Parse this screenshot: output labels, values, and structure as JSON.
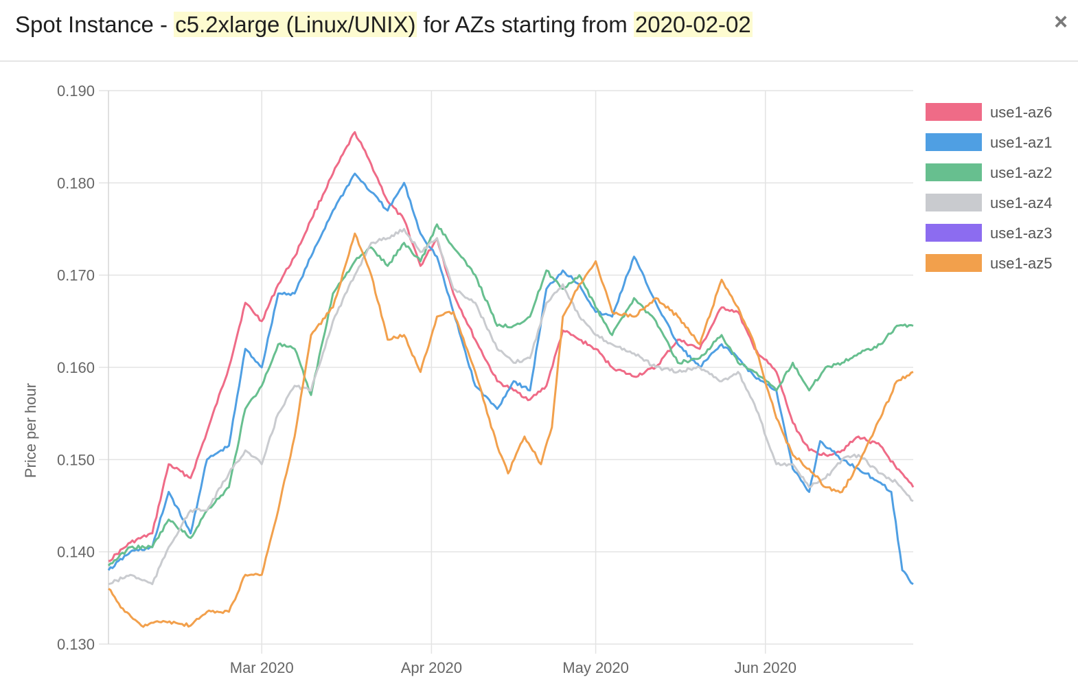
{
  "header": {
    "title_prefix": "Spot Instance - ",
    "instance_type": "c5.2xlarge (Linux/UNIX)",
    "title_middle": " for AZs starting from ",
    "start_date": "2020-02-02",
    "close_icon": "close-icon",
    "close_glyph": "×"
  },
  "chart_data": {
    "type": "line",
    "title": "Spot Instance - c5.2xlarge (Linux/UNIX) for AZs starting from 2020-02-02",
    "ylabel": "Price per hour",
    "xlabel": "",
    "x_axis": {
      "type": "date",
      "start": "2020-02-02",
      "end": "2020-06-28",
      "ticks": [
        "2020-03-01",
        "2020-04-01",
        "2020-05-01",
        "2020-06-01"
      ],
      "tick_labels": [
        "Mar 2020",
        "Apr 2020",
        "May 2020",
        "Jun 2020"
      ]
    },
    "ylim": [
      0.13,
      0.19
    ],
    "yticks": [
      0.13,
      0.14,
      0.15,
      0.16,
      0.17,
      0.18,
      0.19
    ],
    "ytick_labels": [
      "0.130",
      "0.140",
      "0.150",
      "0.160",
      "0.170",
      "0.180",
      "0.190"
    ],
    "grid": true,
    "legend_position": "right",
    "series": [
      {
        "name": "use1-az6",
        "color": "#ef6b87",
        "points": [
          [
            "2020-02-02",
            0.139
          ],
          [
            "2020-02-06",
            0.141
          ],
          [
            "2020-02-10",
            0.142
          ],
          [
            "2020-02-13",
            0.1495
          ],
          [
            "2020-02-17",
            0.148
          ],
          [
            "2020-02-20",
            0.153
          ],
          [
            "2020-02-24",
            0.16
          ],
          [
            "2020-02-27",
            0.167
          ],
          [
            "2020-03-01",
            0.165
          ],
          [
            "2020-03-04",
            0.169
          ],
          [
            "2020-03-07",
            0.172
          ],
          [
            "2020-03-10",
            0.176
          ],
          [
            "2020-03-14",
            0.181
          ],
          [
            "2020-03-18",
            0.1855
          ],
          [
            "2020-03-21",
            0.182
          ],
          [
            "2020-03-24",
            0.178
          ],
          [
            "2020-03-27",
            0.176
          ],
          [
            "2020-03-30",
            0.171
          ],
          [
            "2020-04-02",
            0.174
          ],
          [
            "2020-04-05",
            0.168
          ],
          [
            "2020-04-09",
            0.163
          ],
          [
            "2020-04-13",
            0.1585
          ],
          [
            "2020-04-16",
            0.1575
          ],
          [
            "2020-04-19",
            0.1565
          ],
          [
            "2020-04-22",
            0.158
          ],
          [
            "2020-04-25",
            0.164
          ],
          [
            "2020-04-28",
            0.163
          ],
          [
            "2020-05-01",
            0.162
          ],
          [
            "2020-05-04",
            0.16
          ],
          [
            "2020-05-08",
            0.159
          ],
          [
            "2020-05-12",
            0.16
          ],
          [
            "2020-05-16",
            0.163
          ],
          [
            "2020-05-20",
            0.162
          ],
          [
            "2020-05-24",
            0.1665
          ],
          [
            "2020-05-27",
            0.166
          ],
          [
            "2020-05-30",
            0.162
          ],
          [
            "2020-06-03",
            0.1595
          ],
          [
            "2020-06-06",
            0.154
          ],
          [
            "2020-06-09",
            0.151
          ],
          [
            "2020-06-12",
            0.1505
          ],
          [
            "2020-06-15",
            0.151
          ],
          [
            "2020-06-18",
            0.1525
          ],
          [
            "2020-06-22",
            0.1515
          ],
          [
            "2020-06-25",
            0.149
          ],
          [
            "2020-06-28",
            0.147
          ]
        ]
      },
      {
        "name": "use1-az1",
        "color": "#4f9fe3",
        "points": [
          [
            "2020-02-02",
            0.138
          ],
          [
            "2020-02-06",
            0.14
          ],
          [
            "2020-02-10",
            0.1405
          ],
          [
            "2020-02-13",
            0.1465
          ],
          [
            "2020-02-17",
            0.142
          ],
          [
            "2020-02-20",
            0.15
          ],
          [
            "2020-02-24",
            0.1515
          ],
          [
            "2020-02-27",
            0.162
          ],
          [
            "2020-03-01",
            0.16
          ],
          [
            "2020-03-04",
            0.168
          ],
          [
            "2020-03-07",
            0.168
          ],
          [
            "2020-03-10",
            0.172
          ],
          [
            "2020-03-14",
            0.177
          ],
          [
            "2020-03-18",
            0.181
          ],
          [
            "2020-03-21",
            0.179
          ],
          [
            "2020-03-24",
            0.177
          ],
          [
            "2020-03-27",
            0.18
          ],
          [
            "2020-03-30",
            0.1745
          ],
          [
            "2020-04-02",
            0.172
          ],
          [
            "2020-04-05",
            0.166
          ],
          [
            "2020-04-09",
            0.158
          ],
          [
            "2020-04-13",
            0.1555
          ],
          [
            "2020-04-16",
            0.1585
          ],
          [
            "2020-04-19",
            0.1575
          ],
          [
            "2020-04-22",
            0.1685
          ],
          [
            "2020-04-25",
            0.1705
          ],
          [
            "2020-04-28",
            0.169
          ],
          [
            "2020-05-01",
            0.166
          ],
          [
            "2020-05-04",
            0.1655
          ],
          [
            "2020-05-08",
            0.172
          ],
          [
            "2020-05-12",
            0.167
          ],
          [
            "2020-05-16",
            0.1625
          ],
          [
            "2020-05-20",
            0.16
          ],
          [
            "2020-05-24",
            0.1625
          ],
          [
            "2020-05-27",
            0.161
          ],
          [
            "2020-05-30",
            0.159
          ],
          [
            "2020-06-03",
            0.1575
          ],
          [
            "2020-06-06",
            0.149
          ],
          [
            "2020-06-09",
            0.1465
          ],
          [
            "2020-06-11",
            0.152
          ],
          [
            "2020-06-15",
            0.15
          ],
          [
            "2020-06-18",
            0.149
          ],
          [
            "2020-06-22",
            0.1475
          ],
          [
            "2020-06-24",
            0.1465
          ],
          [
            "2020-06-26",
            0.138
          ],
          [
            "2020-06-28",
            0.1365
          ]
        ]
      },
      {
        "name": "use1-az2",
        "color": "#67bf8f",
        "points": [
          [
            "2020-02-02",
            0.1385
          ],
          [
            "2020-02-06",
            0.1405
          ],
          [
            "2020-02-10",
            0.1405
          ],
          [
            "2020-02-13",
            0.1435
          ],
          [
            "2020-02-17",
            0.1415
          ],
          [
            "2020-02-20",
            0.1445
          ],
          [
            "2020-02-24",
            0.147
          ],
          [
            "2020-02-27",
            0.1555
          ],
          [
            "2020-03-01",
            0.158
          ],
          [
            "2020-03-04",
            0.1625
          ],
          [
            "2020-03-07",
            0.162
          ],
          [
            "2020-03-10",
            0.157
          ],
          [
            "2020-03-14",
            0.168
          ],
          [
            "2020-03-18",
            0.1715
          ],
          [
            "2020-03-21",
            0.173
          ],
          [
            "2020-03-24",
            0.171
          ],
          [
            "2020-03-27",
            0.1735
          ],
          [
            "2020-03-30",
            0.1715
          ],
          [
            "2020-04-02",
            0.1755
          ],
          [
            "2020-04-05",
            0.173
          ],
          [
            "2020-04-09",
            0.17
          ],
          [
            "2020-04-13",
            0.1645
          ],
          [
            "2020-04-16",
            0.1645
          ],
          [
            "2020-04-19",
            0.1655
          ],
          [
            "2020-04-22",
            0.1705
          ],
          [
            "2020-04-25",
            0.1685
          ],
          [
            "2020-04-28",
            0.17
          ],
          [
            "2020-05-01",
            0.1665
          ],
          [
            "2020-05-04",
            0.1635
          ],
          [
            "2020-05-08",
            0.1675
          ],
          [
            "2020-05-12",
            0.165
          ],
          [
            "2020-05-16",
            0.1605
          ],
          [
            "2020-05-20",
            0.161
          ],
          [
            "2020-05-24",
            0.1635
          ],
          [
            "2020-05-27",
            0.1605
          ],
          [
            "2020-05-30",
            0.1595
          ],
          [
            "2020-06-03",
            0.1575
          ],
          [
            "2020-06-06",
            0.1605
          ],
          [
            "2020-06-09",
            0.1575
          ],
          [
            "2020-06-12",
            0.16
          ],
          [
            "2020-06-15",
            0.1605
          ],
          [
            "2020-06-18",
            0.1615
          ],
          [
            "2020-06-22",
            0.1625
          ],
          [
            "2020-06-25",
            0.1645
          ],
          [
            "2020-06-28",
            0.1645
          ]
        ]
      },
      {
        "name": "use1-az4",
        "color": "#c9cbcf",
        "points": [
          [
            "2020-02-02",
            0.1365
          ],
          [
            "2020-02-06",
            0.1375
          ],
          [
            "2020-02-10",
            0.1365
          ],
          [
            "2020-02-13",
            0.1405
          ],
          [
            "2020-02-17",
            0.1445
          ],
          [
            "2020-02-20",
            0.1445
          ],
          [
            "2020-02-24",
            0.1485
          ],
          [
            "2020-02-27",
            0.151
          ],
          [
            "2020-03-01",
            0.1495
          ],
          [
            "2020-03-04",
            0.155
          ],
          [
            "2020-03-07",
            0.158
          ],
          [
            "2020-03-10",
            0.1575
          ],
          [
            "2020-03-14",
            0.165
          ],
          [
            "2020-03-18",
            0.17
          ],
          [
            "2020-03-21",
            0.1735
          ],
          [
            "2020-03-24",
            0.174
          ],
          [
            "2020-03-27",
            0.175
          ],
          [
            "2020-03-30",
            0.1725
          ],
          [
            "2020-04-02",
            0.174
          ],
          [
            "2020-04-05",
            0.1685
          ],
          [
            "2020-04-09",
            0.167
          ],
          [
            "2020-04-13",
            0.162
          ],
          [
            "2020-04-16",
            0.1605
          ],
          [
            "2020-04-19",
            0.161
          ],
          [
            "2020-04-22",
            0.167
          ],
          [
            "2020-04-25",
            0.169
          ],
          [
            "2020-04-28",
            0.1655
          ],
          [
            "2020-05-01",
            0.1635
          ],
          [
            "2020-05-04",
            0.1625
          ],
          [
            "2020-05-08",
            0.1615
          ],
          [
            "2020-05-12",
            0.16
          ],
          [
            "2020-05-16",
            0.1595
          ],
          [
            "2020-05-20",
            0.16
          ],
          [
            "2020-05-24",
            0.1585
          ],
          [
            "2020-05-27",
            0.1595
          ],
          [
            "2020-05-30",
            0.156
          ],
          [
            "2020-06-03",
            0.1495
          ],
          [
            "2020-06-06",
            0.1495
          ],
          [
            "2020-06-09",
            0.147
          ],
          [
            "2020-06-12",
            0.148
          ],
          [
            "2020-06-15",
            0.15
          ],
          [
            "2020-06-18",
            0.1505
          ],
          [
            "2020-06-22",
            0.1485
          ],
          [
            "2020-06-25",
            0.1475
          ],
          [
            "2020-06-28",
            0.1455
          ]
        ]
      },
      {
        "name": "use1-az3",
        "color": "#8c6cf0",
        "points": []
      },
      {
        "name": "use1-az5",
        "color": "#f2a04c",
        "points": [
          [
            "2020-02-02",
            0.136
          ],
          [
            "2020-02-05",
            0.1335
          ],
          [
            "2020-02-08",
            0.132
          ],
          [
            "2020-02-12",
            0.1325
          ],
          [
            "2020-02-17",
            0.132
          ],
          [
            "2020-02-20",
            0.1335
          ],
          [
            "2020-02-24",
            0.1335
          ],
          [
            "2020-02-27",
            0.1375
          ],
          [
            "2020-03-01",
            0.1375
          ],
          [
            "2020-03-04",
            0.1445
          ],
          [
            "2020-03-07",
            0.1525
          ],
          [
            "2020-03-10",
            0.1635
          ],
          [
            "2020-03-14",
            0.1665
          ],
          [
            "2020-03-18",
            0.1745
          ],
          [
            "2020-03-21",
            0.17
          ],
          [
            "2020-03-24",
            0.163
          ],
          [
            "2020-03-27",
            0.1635
          ],
          [
            "2020-03-30",
            0.1595
          ],
          [
            "2020-04-02",
            0.1655
          ],
          [
            "2020-04-05",
            0.166
          ],
          [
            "2020-04-09",
            0.1595
          ],
          [
            "2020-04-13",
            0.1515
          ],
          [
            "2020-04-15",
            0.1485
          ],
          [
            "2020-04-18",
            0.1525
          ],
          [
            "2020-04-21",
            0.1495
          ],
          [
            "2020-04-23",
            0.1535
          ],
          [
            "2020-04-25",
            0.1655
          ],
          [
            "2020-04-28",
            0.169
          ],
          [
            "2020-05-01",
            0.1715
          ],
          [
            "2020-05-04",
            0.166
          ],
          [
            "2020-05-08",
            0.1655
          ],
          [
            "2020-05-12",
            0.1675
          ],
          [
            "2020-05-16",
            0.1655
          ],
          [
            "2020-05-20",
            0.1625
          ],
          [
            "2020-05-24",
            0.1695
          ],
          [
            "2020-05-27",
            0.1665
          ],
          [
            "2020-05-30",
            0.1625
          ],
          [
            "2020-06-03",
            0.1545
          ],
          [
            "2020-06-06",
            0.1505
          ],
          [
            "2020-06-09",
            0.149
          ],
          [
            "2020-06-12",
            0.147
          ],
          [
            "2020-06-15",
            0.1465
          ],
          [
            "2020-06-18",
            0.1495
          ],
          [
            "2020-06-22",
            0.1545
          ],
          [
            "2020-06-25",
            0.1585
          ],
          [
            "2020-06-28",
            0.1595
          ]
        ]
      }
    ]
  }
}
